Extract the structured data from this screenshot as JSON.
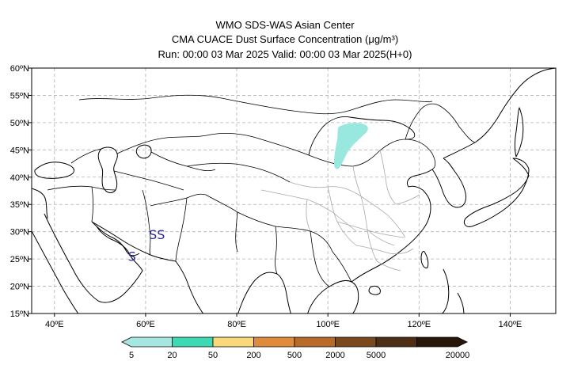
{
  "header": {
    "line1": "WMO SDS-WAS Asian Center",
    "line2": "CMA CUACE Dust Surface Concentration (μg/m³)",
    "line3": "Run: 00:00 03 Mar 2025     Valid: 00:00 03 Mar 2025(H+0)"
  },
  "map": {
    "lon_range": [
      35,
      150
    ],
    "lat_range": [
      15,
      60
    ],
    "lat_ticks": [
      {
        "value": 60,
        "label": "60ºN"
      },
      {
        "value": 55,
        "label": "55ºN"
      },
      {
        "value": 50,
        "label": "50ºN"
      },
      {
        "value": 45,
        "label": "45ºN"
      },
      {
        "value": 40,
        "label": "40ºN"
      },
      {
        "value": 35,
        "label": "35ºN"
      },
      {
        "value": 30,
        "label": "30ºN"
      },
      {
        "value": 25,
        "label": "25ºN"
      },
      {
        "value": 20,
        "label": "20ºN"
      },
      {
        "value": 15,
        "label": "15ºN"
      }
    ],
    "lon_ticks": [
      {
        "value": 40,
        "label": "40ºE"
      },
      {
        "value": 60,
        "label": "60ºE"
      },
      {
        "value": 80,
        "label": "80ºE"
      },
      {
        "value": 100,
        "label": "100ºE"
      },
      {
        "value": 120,
        "label": "120ºE"
      },
      {
        "value": 140,
        "label": "140ºE"
      }
    ],
    "stations": [
      {
        "label": "SS",
        "lon": 62.5,
        "lat": 29.5
      },
      {
        "label": "S",
        "lon": 57.0,
        "lat": 25.5
      }
    ],
    "dust_color": "#98e8e0"
  },
  "colorbar": {
    "colors": [
      "#a4e8e0",
      "#3ed9b4",
      "#f8d878",
      "#e08a3c",
      "#b86a28",
      "#7a4a1e",
      "#4e2e14",
      "#2a1608"
    ],
    "labels": [
      "5",
      "20",
      "50",
      "200",
      "500",
      "2000",
      "5000",
      "20000"
    ]
  }
}
